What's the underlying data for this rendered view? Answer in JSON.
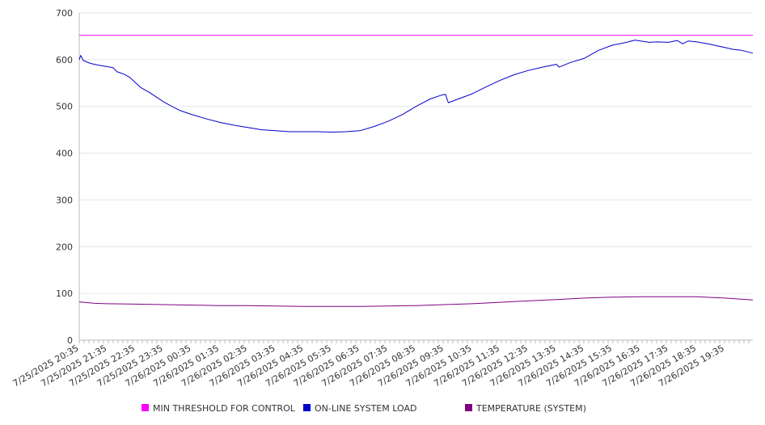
{
  "chart_data": {
    "type": "line",
    "title": "",
    "xlabel": "",
    "ylabel": "",
    "ylim": [
      0,
      700
    ],
    "y_ticks": [
      0,
      100,
      200,
      300,
      400,
      500,
      600,
      700
    ],
    "x_tick_labels": [
      "7/25/2025 20:35",
      "7/25/2025 21:35",
      "7/25/2025 22:35",
      "7/25/2025 23:35",
      "7/26/2025 00:35",
      "7/26/2025 01:35",
      "7/26/2025 02:35",
      "7/26/2025 03:35",
      "7/26/2025 04:35",
      "7/26/2025 05:35",
      "7/26/2025 06:35",
      "7/26/2025 07:35",
      "7/26/2025 08:35",
      "7/26/2025 09:35",
      "7/26/2025 10:35",
      "7/26/2025 11:35",
      "7/26/2025 12:35",
      "7/26/2025 13:35",
      "7/26/2025 14:35",
      "7/26/2025 15:35",
      "7/26/2025 16:35",
      "7/26/2025 17:35",
      "7/26/2025 18:35",
      "7/26/2025 19:35"
    ],
    "x_range_hours": [
      0,
      24
    ],
    "grid": "horizontal",
    "legend_position": "bottom",
    "series": [
      {
        "name": "MIN THRESHOLD FOR CONTROL",
        "color": "#ff00ff",
        "points": [
          [
            0,
            652
          ],
          [
            24,
            652
          ]
        ]
      },
      {
        "name": "ON-LINE SYSTEM LOAD",
        "color": "#0000cc",
        "points": [
          [
            0,
            600
          ],
          [
            0.05,
            609
          ],
          [
            0.15,
            598
          ],
          [
            0.4,
            592
          ],
          [
            0.7,
            588
          ],
          [
            1.0,
            585
          ],
          [
            1.2,
            583
          ],
          [
            1.35,
            574
          ],
          [
            1.6,
            569
          ],
          [
            1.8,
            562
          ],
          [
            2.0,
            551
          ],
          [
            2.2,
            540
          ],
          [
            2.5,
            530
          ],
          [
            2.8,
            518
          ],
          [
            3.0,
            510
          ],
          [
            3.3,
            500
          ],
          [
            3.6,
            491
          ],
          [
            4.0,
            483
          ],
          [
            4.5,
            474
          ],
          [
            5.0,
            466
          ],
          [
            5.5,
            460
          ],
          [
            6.0,
            455
          ],
          [
            6.5,
            450
          ],
          [
            7.0,
            448
          ],
          [
            7.5,
            446
          ],
          [
            8.0,
            446
          ],
          [
            8.5,
            446
          ],
          [
            9.0,
            445
          ],
          [
            9.5,
            446
          ],
          [
            10.0,
            448
          ],
          [
            10.5,
            457
          ],
          [
            11.0,
            468
          ],
          [
            11.5,
            482
          ],
          [
            12.0,
            500
          ],
          [
            12.5,
            516
          ],
          [
            12.9,
            524
          ],
          [
            13.05,
            526
          ],
          [
            13.15,
            508
          ],
          [
            13.5,
            516
          ],
          [
            14.0,
            527
          ],
          [
            14.5,
            542
          ],
          [
            15.0,
            556
          ],
          [
            15.5,
            568
          ],
          [
            16.0,
            577
          ],
          [
            16.5,
            584
          ],
          [
            17.0,
            590
          ],
          [
            17.1,
            584
          ],
          [
            17.5,
            594
          ],
          [
            18.0,
            603
          ],
          [
            18.5,
            620
          ],
          [
            19.0,
            631
          ],
          [
            19.5,
            637
          ],
          [
            19.8,
            642
          ],
          [
            20.0,
            640
          ],
          [
            20.3,
            637
          ],
          [
            20.6,
            638
          ],
          [
            21.0,
            637
          ],
          [
            21.3,
            641
          ],
          [
            21.5,
            634
          ],
          [
            21.7,
            640
          ],
          [
            22.0,
            638
          ],
          [
            22.4,
            634
          ],
          [
            22.7,
            630
          ],
          [
            23.0,
            626
          ],
          [
            23.3,
            622
          ],
          [
            23.6,
            620
          ],
          [
            24.0,
            614
          ]
        ]
      },
      {
        "name": "TEMPERATURE (SYSTEM)",
        "color": "#800080",
        "points": [
          [
            0,
            82
          ],
          [
            0.5,
            79
          ],
          [
            1.0,
            78
          ],
          [
            2.0,
            77
          ],
          [
            3.0,
            76
          ],
          [
            4.0,
            75
          ],
          [
            5.0,
            74
          ],
          [
            6.0,
            74
          ],
          [
            7.0,
            73
          ],
          [
            8.0,
            72
          ],
          [
            9.0,
            72
          ],
          [
            10.0,
            72
          ],
          [
            11.0,
            73
          ],
          [
            12.0,
            74
          ],
          [
            13.0,
            76
          ],
          [
            14.0,
            78
          ],
          [
            15.0,
            81
          ],
          [
            16.0,
            84
          ],
          [
            17.0,
            87
          ],
          [
            18.0,
            90
          ],
          [
            19.0,
            92
          ],
          [
            20.0,
            93
          ],
          [
            21.0,
            93
          ],
          [
            22.0,
            93
          ],
          [
            23.0,
            90
          ],
          [
            24.0,
            86
          ]
        ]
      }
    ]
  }
}
